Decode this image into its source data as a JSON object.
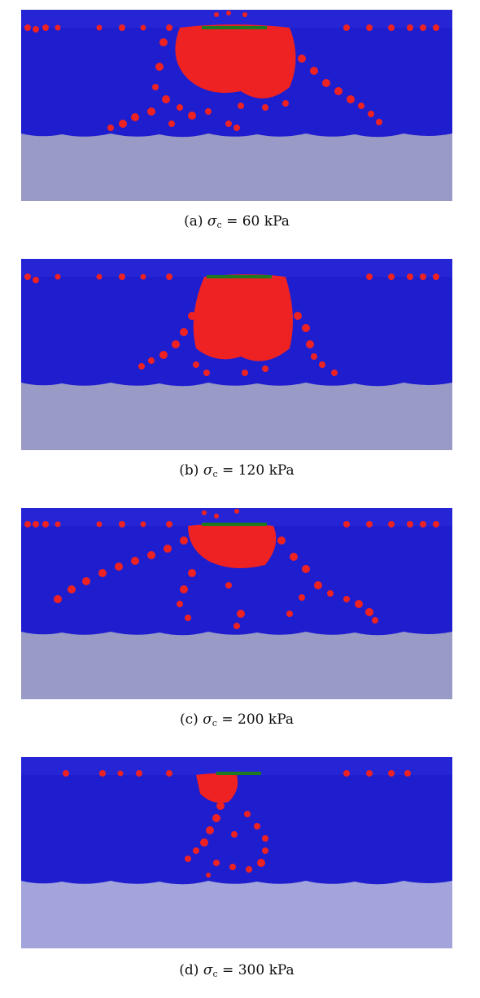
{
  "figure": {
    "panels": [
      {
        "id": "a",
        "label": "(a)",
        "symbol": "σ",
        "subscript": "c",
        "equals": "=",
        "value": "60",
        "unit": "kPa",
        "colors": {
          "particles": "#1e1ecf",
          "highlight": "#ee2222",
          "base": "#9a9ac6",
          "plate": "#1f7a1f"
        }
      },
      {
        "id": "b",
        "label": "(b)",
        "symbol": "σ",
        "subscript": "c",
        "equals": "=",
        "value": "120",
        "unit": "kPa",
        "colors": {
          "particles": "#1e1ecf",
          "highlight": "#ee2222",
          "base": "#9a9ac6",
          "plate": "#1f7a1f"
        }
      },
      {
        "id": "c",
        "label": "(c)",
        "symbol": "σ",
        "subscript": "c",
        "equals": "=",
        "value": "200",
        "unit": "kPa",
        "colors": {
          "particles": "#1e1ecf",
          "highlight": "#ee2222",
          "base": "#9a9ac6",
          "plate": "#1f7a1f"
        }
      },
      {
        "id": "d",
        "label": "(d)",
        "symbol": "σ",
        "subscript": "c",
        "equals": "=",
        "value": "300",
        "unit": "kPa",
        "colors": {
          "particles": "#1e1ecf",
          "highlight": "#ee2222",
          "base": "#a4a4dc",
          "plate": "#1f7a1f"
        }
      }
    ]
  }
}
